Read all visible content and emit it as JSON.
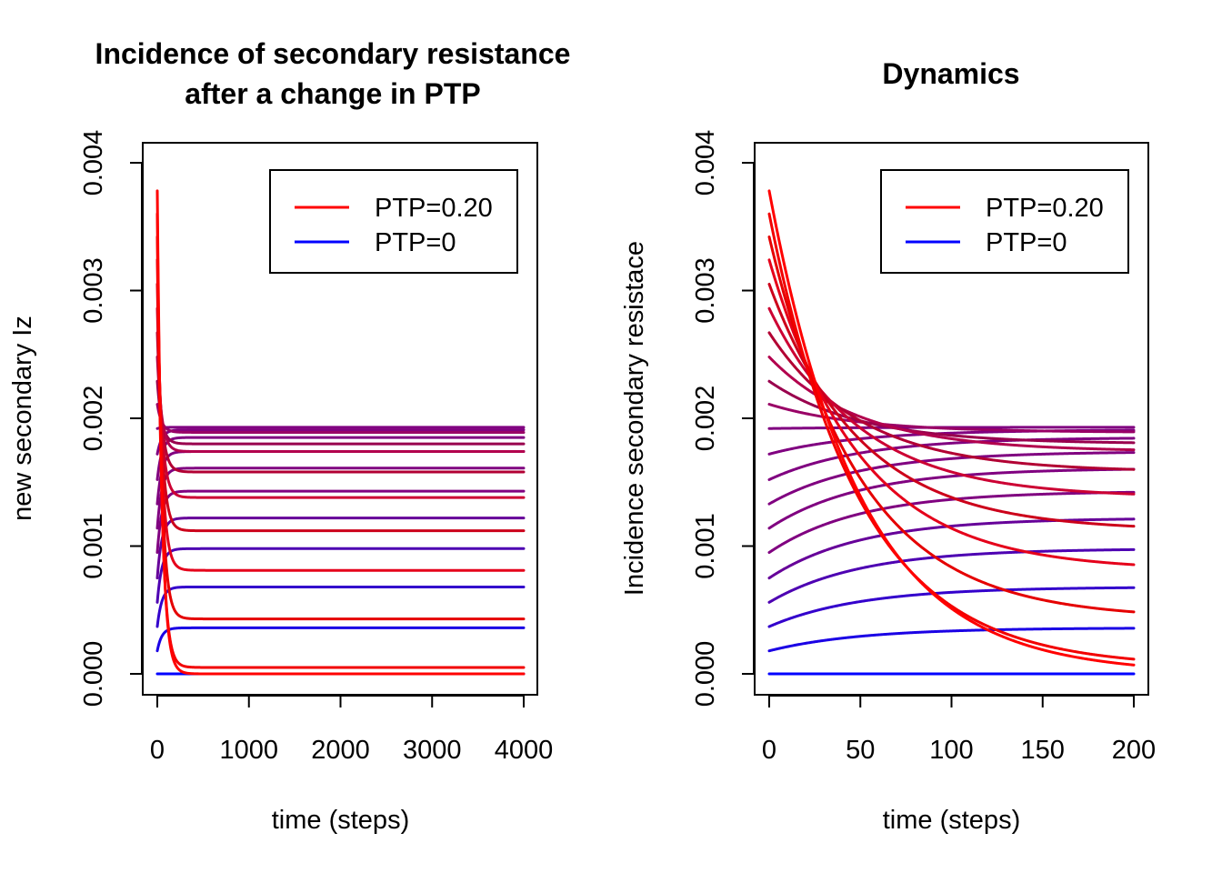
{
  "chart_data": [
    {
      "type": "line",
      "title_lines": [
        "Incidence of secondary resistance",
        "after a change in PTP"
      ],
      "xlabel": "time (steps)",
      "ylabel": "new secondary Iz",
      "xlim": [
        0,
        4000
      ],
      "ylim": [
        0,
        0.004
      ],
      "xticks": [
        0,
        1000,
        2000,
        3000,
        4000
      ],
      "xtick_labels": [
        "0",
        "1000",
        "2000",
        "3000",
        "4000"
      ],
      "yticks": [
        0,
        0.001,
        0.002,
        0.003,
        0.004
      ],
      "ytick_labels": [
        "0.000",
        "0.001",
        "0.002",
        "0.003",
        "0.004"
      ],
      "grid": false,
      "legend_position": "top-right",
      "legend": [
        {
          "label": "PTP=0.20",
          "color": "#FF0000"
        },
        {
          "label": "PTP=0",
          "color": "#0000FF"
        }
      ],
      "series": [
        {
          "color": "#0000FF",
          "start": 0.0,
          "plateau": 0.0,
          "rate": 0.02
        },
        {
          "color": "#1A00E5",
          "start": 0.00018,
          "plateau": 0.00036,
          "rate": 0.02
        },
        {
          "color": "#3300CC",
          "start": 0.00037,
          "plateau": 0.00068,
          "rate": 0.02
        },
        {
          "color": "#4D00B2",
          "start": 0.00056,
          "plateau": 0.00098,
          "rate": 0.02
        },
        {
          "color": "#660099",
          "start": 0.00075,
          "plateau": 0.00122,
          "rate": 0.02
        },
        {
          "color": "#800080",
          "start": 0.00095,
          "plateau": 0.00143,
          "rate": 0.02
        },
        {
          "color": "#800080",
          "start": 0.00114,
          "plateau": 0.00161,
          "rate": 0.02
        },
        {
          "color": "#800080",
          "start": 0.00133,
          "plateau": 0.00174,
          "rate": 0.02
        },
        {
          "color": "#800080",
          "start": 0.00152,
          "plateau": 0.00185,
          "rate": 0.02
        },
        {
          "color": "#800080",
          "start": 0.00172,
          "plateau": 0.00191,
          "rate": 0.02
        },
        {
          "color": "#800080",
          "start": 0.00192,
          "plateau": 0.00193,
          "rate": 0.02
        },
        {
          "color": "#990066",
          "start": 0.00211,
          "plateau": 0.00189,
          "rate": 0.02
        },
        {
          "color": "#99004D",
          "start": 0.00229,
          "plateau": 0.0018,
          "rate": 0.02
        },
        {
          "color": "#B2004D",
          "start": 0.00248,
          "plateau": 0.00174,
          "rate": 0.02
        },
        {
          "color": "#B20033",
          "start": 0.00267,
          "plateau": 0.00158,
          "rate": 0.02
        },
        {
          "color": "#CC0033",
          "start": 0.00286,
          "plateau": 0.00138,
          "rate": 0.02
        },
        {
          "color": "#CC001A",
          "start": 0.00305,
          "plateau": 0.00112,
          "rate": 0.02
        },
        {
          "color": "#E5001A",
          "start": 0.00324,
          "plateau": 0.00081,
          "rate": 0.02
        },
        {
          "color": "#E50000",
          "start": 0.00342,
          "plateau": 0.00043,
          "rate": 0.02
        },
        {
          "color": "#F20000",
          "start": 0.0036,
          "plateau": 5e-05,
          "rate": 0.02
        },
        {
          "color": "#FF0000",
          "start": 0.00378,
          "plateau": 0.0,
          "rate": 0.02
        }
      ]
    },
    {
      "type": "line",
      "title_lines": [
        "Dynamics"
      ],
      "xlabel": "time (steps)",
      "ylabel": "Incidence secondary resistace",
      "xlim": [
        0,
        200
      ],
      "ylim": [
        0,
        0.004
      ],
      "xticks": [
        0,
        50,
        100,
        150,
        200
      ],
      "xtick_labels": [
        "0",
        "50",
        "100",
        "150",
        "200"
      ],
      "yticks": [
        0,
        0.001,
        0.002,
        0.003,
        0.004
      ],
      "ytick_labels": [
        "0.000",
        "0.001",
        "0.002",
        "0.003",
        "0.004"
      ],
      "grid": false,
      "legend_position": "top-right",
      "legend": [
        {
          "label": "PTP=0.20",
          "color": "#FF0000"
        },
        {
          "label": "PTP=0",
          "color": "#0000FF"
        }
      ],
      "series": [
        {
          "color": "#0000FF",
          "start": 0.0,
          "plateau": 0.0,
          "rate": 0.02
        },
        {
          "color": "#1A00E5",
          "start": 0.00018,
          "plateau": 0.00036,
          "rate": 0.02
        },
        {
          "color": "#3300CC",
          "start": 0.00037,
          "plateau": 0.00068,
          "rate": 0.02
        },
        {
          "color": "#4D00B2",
          "start": 0.00056,
          "plateau": 0.00098,
          "rate": 0.02
        },
        {
          "color": "#660099",
          "start": 0.00075,
          "plateau": 0.00122,
          "rate": 0.02
        },
        {
          "color": "#800080",
          "start": 0.00095,
          "plateau": 0.00143,
          "rate": 0.02
        },
        {
          "color": "#800080",
          "start": 0.00114,
          "plateau": 0.00161,
          "rate": 0.02
        },
        {
          "color": "#800080",
          "start": 0.00133,
          "plateau": 0.00174,
          "rate": 0.02
        },
        {
          "color": "#800080",
          "start": 0.00152,
          "plateau": 0.00185,
          "rate": 0.02
        },
        {
          "color": "#800080",
          "start": 0.00172,
          "plateau": 0.00191,
          "rate": 0.02
        },
        {
          "color": "#800080",
          "start": 0.00192,
          "plateau": 0.00193,
          "rate": 0.02
        },
        {
          "color": "#990066",
          "start": 0.00211,
          "plateau": 0.00189,
          "rate": 0.02
        },
        {
          "color": "#99004D",
          "start": 0.00229,
          "plateau": 0.0018,
          "rate": 0.02
        },
        {
          "color": "#B2004D",
          "start": 0.00248,
          "plateau": 0.00174,
          "rate": 0.02
        },
        {
          "color": "#B20033",
          "start": 0.00267,
          "plateau": 0.00158,
          "rate": 0.02
        },
        {
          "color": "#CC0033",
          "start": 0.00286,
          "plateau": 0.00138,
          "rate": 0.02
        },
        {
          "color": "#CC001A",
          "start": 0.00305,
          "plateau": 0.00112,
          "rate": 0.02
        },
        {
          "color": "#E5001A",
          "start": 0.00324,
          "plateau": 0.00081,
          "rate": 0.02
        },
        {
          "color": "#E50000",
          "start": 0.00342,
          "plateau": 0.00043,
          "rate": 0.02
        },
        {
          "color": "#F20000",
          "start": 0.0036,
          "plateau": 5e-05,
          "rate": 0.02
        },
        {
          "color": "#FF0000",
          "start": 0.00378,
          "plateau": 0.0,
          "rate": 0.02
        }
      ]
    }
  ]
}
